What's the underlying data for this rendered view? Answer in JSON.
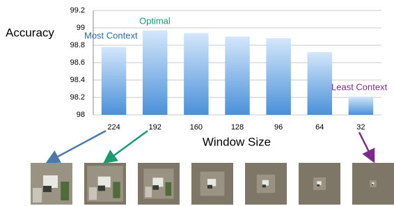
{
  "chart_data": {
    "type": "bar",
    "y_label": "Accuracy",
    "x_label": "Window Size",
    "categories": [
      "224",
      "192",
      "160",
      "128",
      "96",
      "64",
      "32"
    ],
    "values": [
      98.78,
      98.97,
      98.94,
      98.9,
      98.88,
      98.72,
      98.21
    ],
    "color": "#4a90d9",
    "ylim": [
      98,
      99.2
    ],
    "yticks": [
      98,
      98.2,
      98.4,
      98.6,
      98.8,
      99,
      99.2
    ],
    "grid": true,
    "annotations": [
      {
        "text": "Most Context",
        "color": "#2e6aa8"
      },
      {
        "text": "Optimal",
        "color": "#1a9a6e"
      },
      {
        "text": "Least Context",
        "color": "#7b2a8c"
      }
    ]
  }
}
